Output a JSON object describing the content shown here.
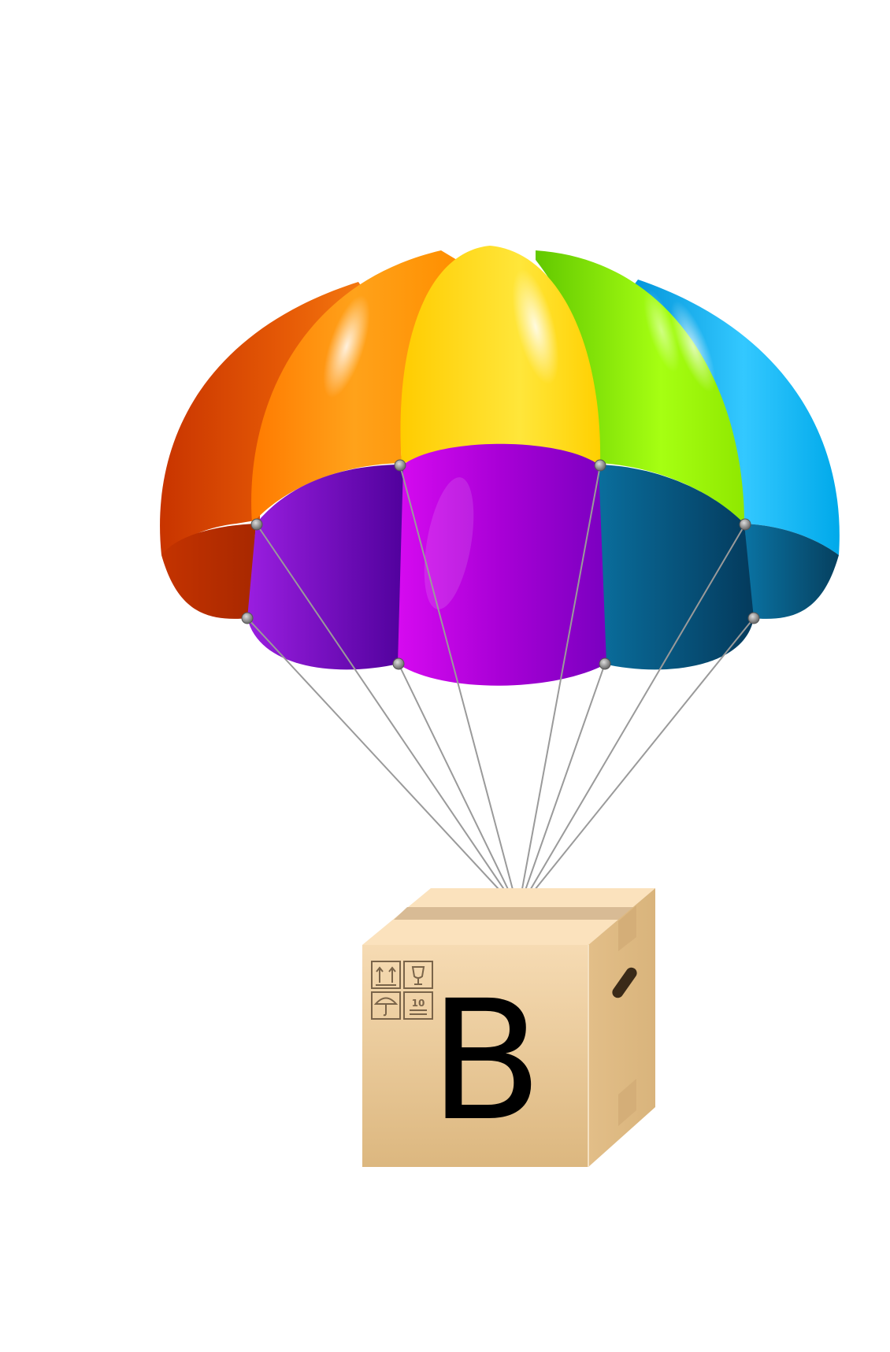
{
  "parachute": {
    "canopy_colors": {
      "orange_red": "#d9470a",
      "orange": "#ff8a00",
      "yellow": "#ffd400",
      "green": "#8fe000",
      "blue": "#10b6f0",
      "purple": "#8d00c8",
      "magenta": "#c200e0",
      "teal": "#00628f"
    },
    "line_color": "#9a9a9a"
  },
  "box": {
    "letter": "B",
    "letter_color": "#000000",
    "cardboard_color": "#e9c79a",
    "handling_marks": {
      "stack_limit": "10",
      "icons": [
        "this-way-up-icon",
        "fragile-glass-icon",
        "keep-dry-umbrella-icon",
        "stack-limit-icon"
      ]
    }
  }
}
